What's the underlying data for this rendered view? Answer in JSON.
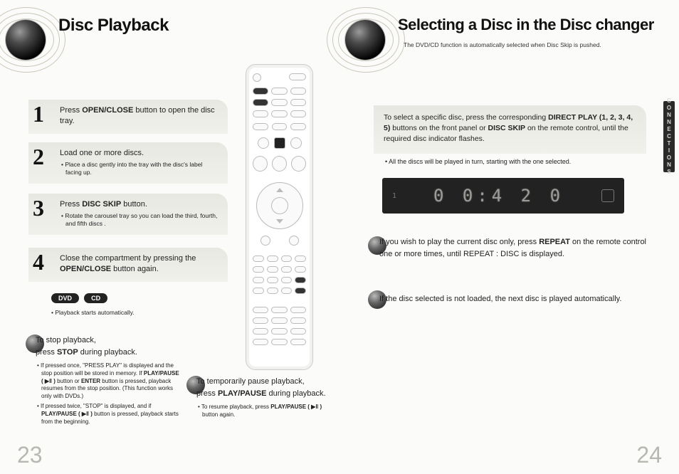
{
  "left": {
    "title": "Disc Playback",
    "steps": [
      {
        "num": "1",
        "htmlMain": "Press <b>OPEN/CLOSE</b> button to open the disc tray.",
        "bullets": []
      },
      {
        "num": "2",
        "htmlMain": "Load one or more discs.",
        "bullets": [
          "• Place a disc gently into the tray with the disc's label facing up."
        ]
      },
      {
        "num": "3",
        "htmlMain": "Press <b>DISC SKIP</b> button.",
        "bullets": [
          "• Rotate the carousel tray so you can load the third, fourth, and fifth discs ."
        ]
      },
      {
        "num": "4",
        "htmlMain": "Close the compartment by pressing the <b>OPEN/CLOSE</b> button again.",
        "bullets": []
      }
    ],
    "pills": [
      "DVD",
      "CD"
    ],
    "autoNote": "• Playback starts automatically.",
    "stopBlock": {
      "lead": "To stop playback,<br>press <b>STOP</b> during playback.",
      "bullets": [
        "• If pressed once, \"PRESS PLAY\" is displayed and the stop position will be stored in memory. If <b>PLAY/PAUSE ( ▶ǁ )</b> button or <b>ENTER</b> button is pressed, playback resumes from the stop position. (This function works only with DVDs.)",
        "• If pressed twice, \"STOP\" is displayed, and if <b>PLAY/PAUSE ( ▶ǁ )</b> button is pressed, playback starts from the beginning."
      ]
    },
    "pauseBlock": {
      "lead": "To temporarily pause playback,<br>press <b>PLAY/PAUSE</b> during playback.",
      "bullets": [
        "• To resume playback, press <b>PLAY/PAUSE ( ▶ǁ )</b> button again."
      ]
    },
    "pageNum": "23"
  },
  "right": {
    "title": "Selecting a Disc in the Disc changer",
    "subhead": "The DVD/CD function is automatically selected when Disc Skip is pushed.",
    "infoBoxHtml": "To select a specific disc, press the corresponding <b>DIRECT PLAY (1, 2, 3, 4, 5)</b> buttons on the front panel or <b>DISC SKIP</b> on the remote control, until the required disc indicator flashes.",
    "infoBullet": "• All the discs will be played in turn, starting with the one selected.",
    "displayText": "0 0:4 2 0",
    "note1Html": "If you wish to play the current disc only, press <b>REPEAT</b> on the remote control one or more times, until REPEAT : DISC is displayed.",
    "note2Html": "If the disc selected is not loaded, the next disc is played automatically.",
    "sidetab": "CONNECTIONS",
    "pageNum": "24"
  },
  "style": {
    "bgGradient": "#e8e8e2",
    "sphereDark": "#000000",
    "displayBg": "#222222",
    "segColor": "#9d9d98",
    "pageNumColor": "#b8b8b2"
  }
}
